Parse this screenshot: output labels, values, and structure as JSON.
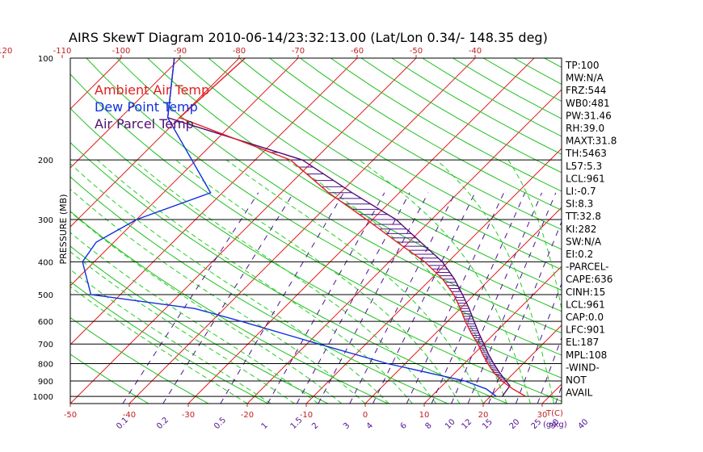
{
  "chart_data": {
    "type": "skew-t",
    "title": "AIRS SkewT Diagram 2010-06-14/23:32:13.00 (Lat/Lon 0.34/- 148.35 deg)",
    "ylabel": "PRESSURE (MB)",
    "bottom_axis_unit": "T(C)",
    "mixing_ratio_unit": "(g/kg)",
    "pressure_levels": [
      100,
      200,
      300,
      400,
      500,
      600,
      700,
      800,
      900,
      1000
    ],
    "pressure_labels": [
      "100",
      "200",
      "300",
      "400",
      "500",
      "600",
      "700",
      "800",
      "900",
      "1000"
    ],
    "top_temp_ticks": [
      "-120",
      "-110",
      "-100",
      "-90",
      "-80",
      "-70",
      "-60",
      "-50",
      "-40"
    ],
    "bottom_temp_ticks": [
      "-50",
      "-40",
      "-30",
      "-20",
      "-10",
      "0",
      "10",
      "20",
      "30"
    ],
    "mixing_ratio_ticks": [
      "0.1",
      "0.2",
      "0.5",
      "1",
      "1.5",
      "2",
      "3",
      "4",
      "6",
      "8",
      "10",
      "12",
      "15",
      "20",
      "25",
      "30",
      "40"
    ],
    "legend": [
      {
        "name": "Ambient Air Temp",
        "color": "#e02020"
      },
      {
        "name": "Dew Point Temp",
        "color": "#1030e0"
      },
      {
        "name": "Air Parcel Temp",
        "color": "#501070"
      }
    ],
    "series": [
      {
        "name": "Ambient Air Temp",
        "color": "#e02020",
        "points": [
          {
            "p": 100,
            "t": -79
          },
          {
            "p": 150,
            "t": -80
          },
          {
            "p": 200,
            "t": -54
          },
          {
            "p": 250,
            "t": -42
          },
          {
            "p": 300,
            "t": -31
          },
          {
            "p": 350,
            "t": -22
          },
          {
            "p": 400,
            "t": -14
          },
          {
            "p": 450,
            "t": -8
          },
          {
            "p": 500,
            "t": -3.5
          },
          {
            "p": 550,
            "t": 0
          },
          {
            "p": 600,
            "t": 3
          },
          {
            "p": 650,
            "t": 6
          },
          {
            "p": 700,
            "t": 9
          },
          {
            "p": 750,
            "t": 11.5
          },
          {
            "p": 800,
            "t": 14
          },
          {
            "p": 850,
            "t": 16.5
          },
          {
            "p": 900,
            "t": 19.3
          },
          {
            "p": 950,
            "t": 22.5
          },
          {
            "p": 1000,
            "t": 26
          }
        ]
      },
      {
        "name": "Dew Point Temp",
        "color": "#1030e0",
        "points": [
          {
            "p": 100,
            "t": -91
          },
          {
            "p": 150,
            "t": -82
          },
          {
            "p": 250,
            "t": -62
          },
          {
            "p": 300,
            "t": -70
          },
          {
            "p": 350,
            "t": -73
          },
          {
            "p": 400,
            "t": -72
          },
          {
            "p": 500,
            "t": -65
          },
          {
            "p": 550,
            "t": -45
          },
          {
            "p": 600,
            "t": -35
          },
          {
            "p": 700,
            "t": -18
          },
          {
            "p": 800,
            "t": -3
          },
          {
            "p": 900,
            "t": 13
          },
          {
            "p": 950,
            "t": 18
          },
          {
            "p": 1000,
            "t": 21
          }
        ]
      },
      {
        "name": "Air Parcel Temp",
        "color": "#501070",
        "points": [
          {
            "p": 100,
            "t": -91
          },
          {
            "p": 150,
            "t": -82
          },
          {
            "p": 200,
            "t": -52
          },
          {
            "p": 250,
            "t": -38
          },
          {
            "p": 300,
            "t": -26
          },
          {
            "p": 350,
            "t": -18
          },
          {
            "p": 400,
            "t": -11
          },
          {
            "p": 450,
            "t": -6
          },
          {
            "p": 500,
            "t": -2
          },
          {
            "p": 550,
            "t": 1.5
          },
          {
            "p": 600,
            "t": 4.5
          },
          {
            "p": 650,
            "t": 7.3
          },
          {
            "p": 700,
            "t": 10
          },
          {
            "p": 750,
            "t": 12.5
          },
          {
            "p": 800,
            "t": 15
          },
          {
            "p": 850,
            "t": 17.5
          },
          {
            "p": 900,
            "t": 20
          },
          {
            "p": 930,
            "t": 21.5
          },
          {
            "p": 1000,
            "t": 22
          }
        ]
      }
    ],
    "indices": [
      "TP:100",
      "MW:N/A",
      "FRZ:544",
      "WB0:481",
      "PW:31.46",
      "RH:39.0",
      "MAXT:31.8",
      "TH:5463",
      "L57:5.3",
      "LCL:961",
      "LI:-0.7",
      "SI:8.3",
      "TT:32.8",
      "KI:282",
      "SW:N/A",
      "EI:0.2",
      "-PARCEL-",
      "CAPE:636",
      "CINH:15",
      "LCL:961",
      "CAP:0.0",
      "LFC:901",
      "EL:187",
      "MPL:108",
      "-WIND-",
      "NOT",
      "AVAIL"
    ],
    "colors": {
      "isotherm": "#e02020",
      "dry_adiabat": "#20c020",
      "moist_adiabat": "#20d020",
      "mixing_ratio": "#501090",
      "isobar": "#000000",
      "axis_tick": "#c02020"
    },
    "grid": true
  }
}
